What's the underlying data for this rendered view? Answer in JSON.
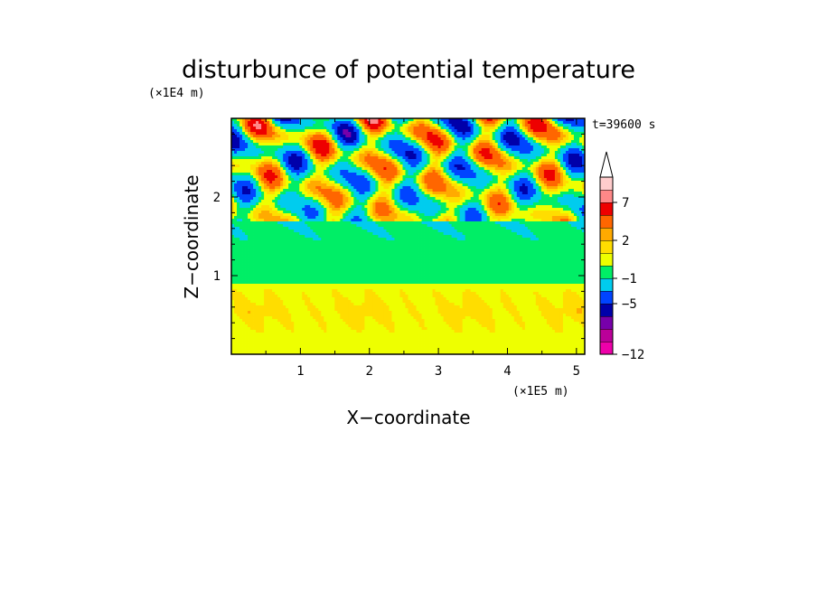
{
  "chart_data": {
    "type": "heatmap",
    "title": "disturbunce of potential temperature",
    "xlabel": "X−coordinate",
    "ylabel": "Z−coordinate",
    "x_unit": "(×1E5 m)",
    "y_unit": "(×1E4 m)",
    "annotation": "t=39600 s",
    "xlim": [
      0,
      5.12
    ],
    "ylim": [
      0,
      3.0
    ],
    "x_ticks": [
      1,
      2,
      3,
      4,
      5
    ],
    "x_tick_labels": [
      "1",
      "2",
      "3",
      "4",
      "5"
    ],
    "y_ticks": [
      1,
      2
    ],
    "y_tick_labels": [
      "1",
      "2"
    ],
    "colorbar": {
      "levels": [
        -12,
        -11,
        -9,
        -7,
        -5,
        -3,
        -1,
        0,
        1,
        2,
        3,
        5,
        7,
        9,
        11
      ],
      "labeled_ticks": [
        {
          "value": 7,
          "label": "7"
        },
        {
          "value": 2,
          "label": "2"
        },
        {
          "value": -1,
          "label": "−1"
        },
        {
          "value": -5,
          "label": "−5"
        },
        {
          "value": -12,
          "label": "−12"
        }
      ],
      "colors": [
        "#ee00aa",
        "#bb0099",
        "#7700aa",
        "#0000aa",
        "#0044ff",
        "#00ccee",
        "#00ee66",
        "#eeff00",
        "#ffdd00",
        "#ffaa00",
        "#ff6600",
        "#ee0000",
        "#ff8888",
        "#ffcccc"
      ],
      "extend_top": true
    },
    "field_description": {
      "lower_layer_z": [
        0,
        0.9
      ],
      "lower_layer_value_range": [
        0,
        2
      ],
      "middle_layer_z": [
        0.9,
        1.7
      ],
      "middle_layer_value_range": [
        -1,
        0
      ],
      "upper_layer_z": [
        1.7,
        3.0
      ],
      "upper_layer_value_range": [
        -7,
        7
      ]
    }
  }
}
